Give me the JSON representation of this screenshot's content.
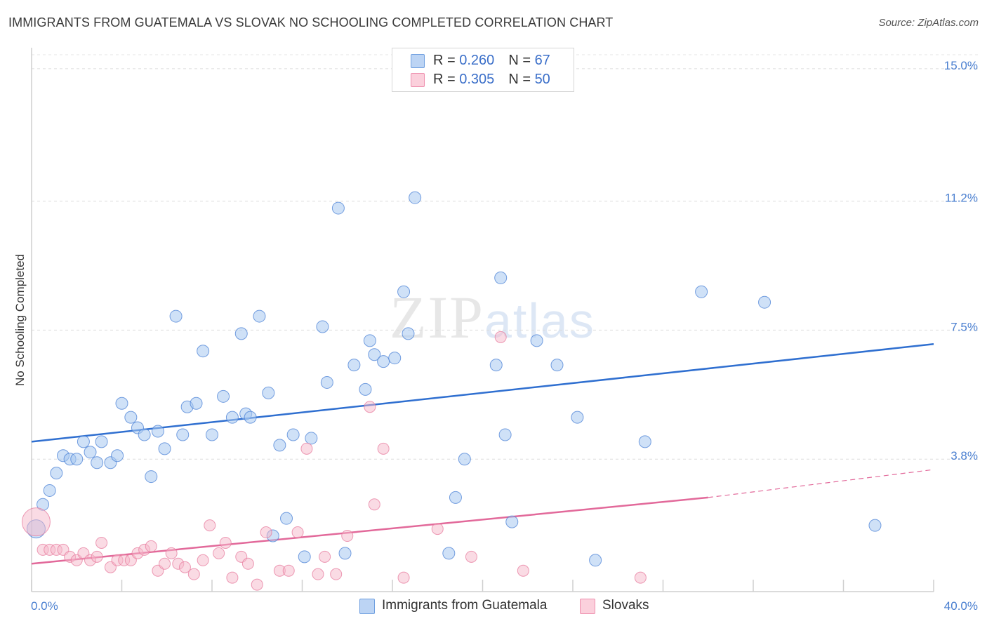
{
  "header": {
    "title": "IMMIGRANTS FROM GUATEMALA VS SLOVAK NO SCHOOLING COMPLETED CORRELATION CHART",
    "source": "Source: ZipAtlas.com"
  },
  "watermark": {
    "zip": "ZIP",
    "atlas": "atlas"
  },
  "legend": {
    "rows": [
      {
        "r_label": "R = ",
        "r_value": "0.260",
        "n_label": "N = ",
        "n_value": "67",
        "color": "#a8c8f0"
      },
      {
        "r_label": "R = ",
        "r_value": "0.305",
        "n_label": "N = ",
        "n_value": "50",
        "color": "#f5b8ca"
      }
    ]
  },
  "bottom_legend": {
    "items": [
      {
        "label": "Immigrants from Guatemala",
        "color": "#a8c8f0"
      },
      {
        "label": "Slovaks",
        "color": "#f5b8ca"
      }
    ]
  },
  "chart_data": {
    "type": "scatter",
    "title": "IMMIGRANTS FROM GUATEMALA VS SLOVAK NO SCHOOLING COMPLETED CORRELATION CHART",
    "xlabel": "",
    "ylabel": "No Schooling Completed",
    "x_tick_labels": [
      "0.0%",
      "40.0%"
    ],
    "y_tick_labels": [
      "3.8%",
      "7.5%",
      "11.2%",
      "15.0%"
    ],
    "y_ticks": [
      3.8,
      7.5,
      11.2,
      15.0
    ],
    "xlim": [
      0,
      40
    ],
    "ylim": [
      0,
      15.4
    ],
    "grid": true,
    "legend_position": "top-center",
    "series": [
      {
        "name": "Immigrants from Guatemala",
        "color": "#4a80d6",
        "fill": "#a8c8f0",
        "trend": {
          "x": [
            0,
            40
          ],
          "y": [
            4.3,
            7.1
          ],
          "color": "#2f6fd0"
        },
        "points": [
          [
            0.2,
            1.8
          ],
          [
            0.5,
            2.5
          ],
          [
            0.8,
            2.9
          ],
          [
            1.1,
            3.4
          ],
          [
            1.4,
            3.9
          ],
          [
            1.7,
            3.8
          ],
          [
            2.0,
            3.8
          ],
          [
            2.3,
            4.3
          ],
          [
            2.6,
            4.0
          ],
          [
            2.9,
            3.7
          ],
          [
            3.1,
            4.3
          ],
          [
            3.5,
            3.7
          ],
          [
            3.8,
            3.9
          ],
          [
            4.0,
            5.4
          ],
          [
            4.4,
            5.0
          ],
          [
            4.7,
            4.7
          ],
          [
            5.0,
            4.5
          ],
          [
            5.3,
            3.3
          ],
          [
            5.6,
            4.6
          ],
          [
            5.9,
            4.1
          ],
          [
            6.4,
            7.9
          ],
          [
            6.7,
            4.5
          ],
          [
            6.9,
            5.3
          ],
          [
            7.3,
            5.4
          ],
          [
            7.6,
            6.9
          ],
          [
            8.0,
            4.5
          ],
          [
            8.5,
            5.6
          ],
          [
            8.9,
            5.0
          ],
          [
            9.3,
            7.4
          ],
          [
            9.5,
            5.1
          ],
          [
            9.7,
            5.0
          ],
          [
            10.1,
            7.9
          ],
          [
            10.5,
            5.7
          ],
          [
            10.7,
            1.6
          ],
          [
            11.0,
            4.2
          ],
          [
            11.3,
            2.1
          ],
          [
            11.6,
            4.5
          ],
          [
            12.1,
            1.0
          ],
          [
            12.4,
            4.4
          ],
          [
            12.9,
            7.6
          ],
          [
            13.1,
            6.0
          ],
          [
            13.6,
            11.0
          ],
          [
            13.9,
            1.1
          ],
          [
            14.3,
            6.5
          ],
          [
            14.8,
            5.8
          ],
          [
            15.0,
            7.2
          ],
          [
            15.2,
            6.8
          ],
          [
            15.6,
            6.6
          ],
          [
            16.1,
            6.7
          ],
          [
            16.5,
            8.6
          ],
          [
            16.7,
            7.4
          ],
          [
            17.0,
            11.3
          ],
          [
            18.5,
            1.1
          ],
          [
            18.8,
            2.7
          ],
          [
            19.2,
            3.8
          ],
          [
            20.6,
            6.5
          ],
          [
            20.8,
            9.0
          ],
          [
            21.0,
            4.5
          ],
          [
            21.3,
            2.0
          ],
          [
            22.4,
            7.2
          ],
          [
            23.3,
            6.5
          ],
          [
            24.2,
            5.0
          ],
          [
            25.0,
            0.9
          ],
          [
            27.2,
            4.3
          ],
          [
            29.7,
            8.6
          ],
          [
            32.5,
            8.3
          ],
          [
            37.4,
            1.9
          ]
        ]
      },
      {
        "name": "Slovaks",
        "color": "#e77b9e",
        "fill": "#f5b8ca",
        "trend": {
          "x": [
            0,
            30
          ],
          "y": [
            0.8,
            2.7
          ],
          "color": "#e2699a"
        },
        "trend_extension": {
          "x": [
            30,
            40
          ],
          "y": [
            2.7,
            3.5
          ]
        },
        "points": [
          [
            0.2,
            2.0
          ],
          [
            0.5,
            1.2
          ],
          [
            0.8,
            1.2
          ],
          [
            1.1,
            1.2
          ],
          [
            1.4,
            1.2
          ],
          [
            1.7,
            1.0
          ],
          [
            2.0,
            0.9
          ],
          [
            2.3,
            1.1
          ],
          [
            2.6,
            0.9
          ],
          [
            2.9,
            1.0
          ],
          [
            3.1,
            1.4
          ],
          [
            3.5,
            0.7
          ],
          [
            3.8,
            0.9
          ],
          [
            4.1,
            0.9
          ],
          [
            4.4,
            0.9
          ],
          [
            4.7,
            1.1
          ],
          [
            5.0,
            1.2
          ],
          [
            5.3,
            1.3
          ],
          [
            5.6,
            0.6
          ],
          [
            5.9,
            0.8
          ],
          [
            6.2,
            1.1
          ],
          [
            6.5,
            0.8
          ],
          [
            6.8,
            0.7
          ],
          [
            7.2,
            0.5
          ],
          [
            7.6,
            0.9
          ],
          [
            7.9,
            1.9
          ],
          [
            8.3,
            1.1
          ],
          [
            8.6,
            1.4
          ],
          [
            8.9,
            0.4
          ],
          [
            9.3,
            1.0
          ],
          [
            9.6,
            0.8
          ],
          [
            10.0,
            0.2
          ],
          [
            10.4,
            1.7
          ],
          [
            11.0,
            0.6
          ],
          [
            11.4,
            0.6
          ],
          [
            11.8,
            1.7
          ],
          [
            12.2,
            4.1
          ],
          [
            12.7,
            0.5
          ],
          [
            13.0,
            1.0
          ],
          [
            13.5,
            0.5
          ],
          [
            14.0,
            1.6
          ],
          [
            15.0,
            5.3
          ],
          [
            15.2,
            2.5
          ],
          [
            15.6,
            4.1
          ],
          [
            16.5,
            0.4
          ],
          [
            18.0,
            1.8
          ],
          [
            19.5,
            1.0
          ],
          [
            20.8,
            7.3
          ],
          [
            21.8,
            0.6
          ],
          [
            27.0,
            0.4
          ]
        ]
      }
    ]
  }
}
